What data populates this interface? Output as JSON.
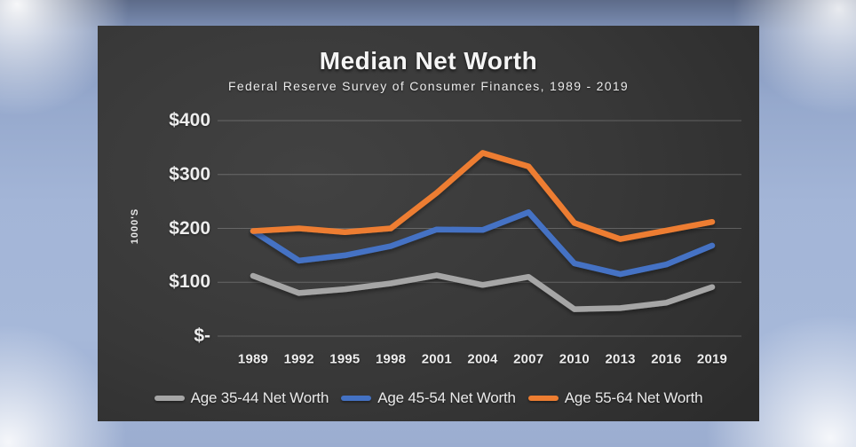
{
  "chart": {
    "title": "Median Net Worth",
    "subtitle": "Federal Reserve Survey of Consumer Finances, 1989 - 2019",
    "y_unit_label": "1000'S"
  },
  "chart_data": {
    "type": "line",
    "title": "Median Net Worth",
    "subtitle": "Federal Reserve Survey of Consumer Finances, 1989 - 2019",
    "xlabel": "",
    "ylabel": "1000'S",
    "ylim": [
      0,
      400
    ],
    "grid": true,
    "legend_position": "bottom",
    "categories": [
      "1989",
      "1992",
      "1995",
      "1998",
      "2001",
      "2004",
      "2007",
      "2010",
      "2013",
      "2016",
      "2019"
    ],
    "y_ticks": [
      {
        "label": "$400",
        "value": 400
      },
      {
        "label": "$300",
        "value": 300
      },
      {
        "label": "$200",
        "value": 200
      },
      {
        "label": "$100",
        "value": 100
      },
      {
        "label": "$-",
        "value": 0
      }
    ],
    "series": [
      {
        "name": "Age 35-44 Net Worth",
        "color": "#a6a6a6",
        "values": [
          112,
          80,
          87,
          98,
          113,
          95,
          110,
          50,
          52,
          62,
          91
        ]
      },
      {
        "name": "Age 45-54 Net Worth",
        "color": "#4472c4",
        "values": [
          195,
          140,
          150,
          167,
          198,
          197,
          230,
          135,
          115,
          133,
          168
        ]
      },
      {
        "name": "Age 55-64 Net Worth",
        "color": "#ed7d31",
        "values": [
          195,
          200,
          193,
          200,
          266,
          340,
          315,
          210,
          180,
          196,
          212
        ]
      }
    ]
  },
  "colors": {
    "panel_background": "#383838",
    "frame_background": "#a3b5d7",
    "gridline": "rgba(255,255,255,0.22)",
    "text": "#ededed"
  }
}
